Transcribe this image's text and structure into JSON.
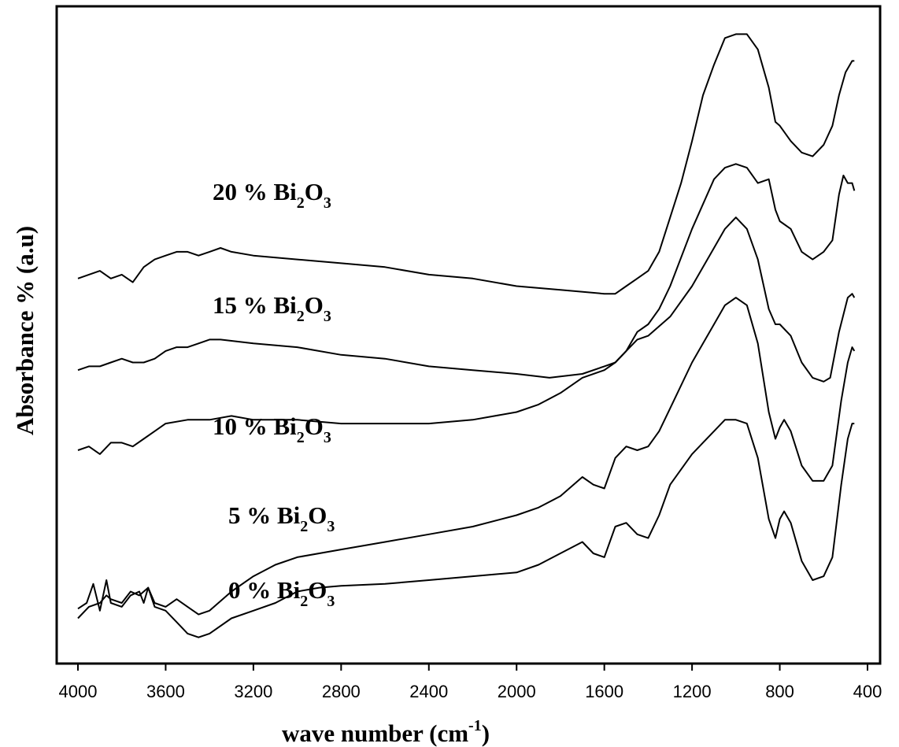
{
  "chart_data": {
    "type": "line",
    "xlabel": "wave number (cm",
    "xlabel_sup": "-1",
    "xlabel_close": ")",
    "ylabel": "Absorbance % (a.u)",
    "x_reversed": true,
    "xlim": [
      4000,
      400
    ],
    "xticks": [
      4000,
      3600,
      3200,
      2800,
      2400,
      2000,
      1600,
      1200,
      800,
      400
    ],
    "grid": false,
    "line_color": "#000000",
    "series": [
      {
        "name": "0 % Bi2O3",
        "label": {
          "prefix": "0 % Bi",
          "sub1": "2",
          "mid": "O",
          "sub2": "3"
        },
        "points": [
          [
            4000,
            0.055
          ],
          [
            3960,
            0.07
          ],
          [
            3930,
            0.12
          ],
          [
            3900,
            0.05
          ],
          [
            3870,
            0.13
          ],
          [
            3850,
            0.07
          ],
          [
            3800,
            0.06
          ],
          [
            3760,
            0.09
          ],
          [
            3720,
            0.1
          ],
          [
            3700,
            0.07
          ],
          [
            3680,
            0.11
          ],
          [
            3650,
            0.06
          ],
          [
            3600,
            0.05
          ],
          [
            3550,
            0.02
          ],
          [
            3500,
            -0.01
          ],
          [
            3450,
            -0.02
          ],
          [
            3400,
            -0.01
          ],
          [
            3300,
            0.03
          ],
          [
            3200,
            0.05
          ],
          [
            3100,
            0.07
          ],
          [
            3000,
            0.1
          ],
          [
            2900,
            0.11
          ],
          [
            2800,
            0.115
          ],
          [
            2600,
            0.12
          ],
          [
            2400,
            0.13
          ],
          [
            2200,
            0.14
          ],
          [
            2000,
            0.15
          ],
          [
            1900,
            0.17
          ],
          [
            1800,
            0.2
          ],
          [
            1700,
            0.23
          ],
          [
            1650,
            0.2
          ],
          [
            1600,
            0.19
          ],
          [
            1550,
            0.27
          ],
          [
            1500,
            0.28
          ],
          [
            1450,
            0.25
          ],
          [
            1400,
            0.24
          ],
          [
            1350,
            0.3
          ],
          [
            1300,
            0.38
          ],
          [
            1200,
            0.46
          ],
          [
            1100,
            0.52
          ],
          [
            1050,
            0.55
          ],
          [
            1000,
            0.55
          ],
          [
            950,
            0.54
          ],
          [
            900,
            0.45
          ],
          [
            850,
            0.29
          ],
          [
            820,
            0.24
          ],
          [
            800,
            0.29
          ],
          [
            780,
            0.31
          ],
          [
            750,
            0.28
          ],
          [
            700,
            0.18
          ],
          [
            650,
            0.13
          ],
          [
            600,
            0.14
          ],
          [
            560,
            0.19
          ],
          [
            520,
            0.38
          ],
          [
            490,
            0.5
          ],
          [
            470,
            0.54
          ],
          [
            460,
            0.54
          ]
        ]
      },
      {
        "name": "5 % Bi2O3",
        "label": {
          "prefix": "5 % Bi",
          "sub1": "2",
          "mid": "O",
          "sub2": "3"
        },
        "points": [
          [
            4000,
            0.03
          ],
          [
            3950,
            0.06
          ],
          [
            3900,
            0.07
          ],
          [
            3870,
            0.09
          ],
          [
            3850,
            0.08
          ],
          [
            3800,
            0.07
          ],
          [
            3760,
            0.1
          ],
          [
            3720,
            0.09
          ],
          [
            3680,
            0.11
          ],
          [
            3650,
            0.07
          ],
          [
            3600,
            0.06
          ],
          [
            3550,
            0.08
          ],
          [
            3500,
            0.06
          ],
          [
            3450,
            0.04
          ],
          [
            3400,
            0.05
          ],
          [
            3300,
            0.1
          ],
          [
            3200,
            0.14
          ],
          [
            3100,
            0.17
          ],
          [
            3000,
            0.19
          ],
          [
            2800,
            0.21
          ],
          [
            2600,
            0.23
          ],
          [
            2400,
            0.25
          ],
          [
            2200,
            0.27
          ],
          [
            2000,
            0.3
          ],
          [
            1900,
            0.32
          ],
          [
            1800,
            0.35
          ],
          [
            1700,
            0.4
          ],
          [
            1650,
            0.38
          ],
          [
            1600,
            0.37
          ],
          [
            1550,
            0.45
          ],
          [
            1500,
            0.48
          ],
          [
            1450,
            0.47
          ],
          [
            1400,
            0.48
          ],
          [
            1350,
            0.52
          ],
          [
            1300,
            0.58
          ],
          [
            1200,
            0.7
          ],
          [
            1100,
            0.8
          ],
          [
            1050,
            0.85
          ],
          [
            1000,
            0.87
          ],
          [
            950,
            0.85
          ],
          [
            900,
            0.75
          ],
          [
            850,
            0.57
          ],
          [
            820,
            0.5
          ],
          [
            800,
            0.53
          ],
          [
            780,
            0.55
          ],
          [
            750,
            0.52
          ],
          [
            700,
            0.43
          ],
          [
            650,
            0.39
          ],
          [
            600,
            0.39
          ],
          [
            560,
            0.43
          ],
          [
            520,
            0.6
          ],
          [
            490,
            0.7
          ],
          [
            470,
            0.74
          ],
          [
            460,
            0.73
          ]
        ]
      },
      {
        "name": "10 % Bi2O3",
        "label": {
          "prefix": "10 % Bi",
          "sub1": "2",
          "mid": "O",
          "sub2": "3"
        },
        "points": [
          [
            4000,
            0.47
          ],
          [
            3950,
            0.48
          ],
          [
            3900,
            0.46
          ],
          [
            3850,
            0.49
          ],
          [
            3800,
            0.49
          ],
          [
            3750,
            0.48
          ],
          [
            3700,
            0.5
          ],
          [
            3650,
            0.52
          ],
          [
            3600,
            0.54
          ],
          [
            3500,
            0.55
          ],
          [
            3400,
            0.55
          ],
          [
            3300,
            0.56
          ],
          [
            3200,
            0.55
          ],
          [
            3000,
            0.55
          ],
          [
            2800,
            0.54
          ],
          [
            2600,
            0.54
          ],
          [
            2400,
            0.54
          ],
          [
            2200,
            0.55
          ],
          [
            2000,
            0.57
          ],
          [
            1900,
            0.59
          ],
          [
            1800,
            0.62
          ],
          [
            1700,
            0.66
          ],
          [
            1600,
            0.68
          ],
          [
            1550,
            0.7
          ],
          [
            1500,
            0.73
          ],
          [
            1450,
            0.76
          ],
          [
            1400,
            0.77
          ],
          [
            1300,
            0.82
          ],
          [
            1200,
            0.9
          ],
          [
            1100,
            1.0
          ],
          [
            1050,
            1.05
          ],
          [
            1000,
            1.08
          ],
          [
            950,
            1.05
          ],
          [
            900,
            0.97
          ],
          [
            850,
            0.84
          ],
          [
            820,
            0.8
          ],
          [
            800,
            0.8
          ],
          [
            750,
            0.77
          ],
          [
            700,
            0.7
          ],
          [
            650,
            0.66
          ],
          [
            600,
            0.65
          ],
          [
            570,
            0.66
          ],
          [
            530,
            0.78
          ],
          [
            490,
            0.87
          ],
          [
            470,
            0.88
          ],
          [
            460,
            0.87
          ]
        ]
      },
      {
        "name": "15 % Bi2O3",
        "label": {
          "prefix": "15 % Bi",
          "sub1": "2",
          "mid": "O",
          "sub2": "3"
        },
        "points": [
          [
            4000,
            0.68
          ],
          [
            3950,
            0.69
          ],
          [
            3900,
            0.69
          ],
          [
            3850,
            0.7
          ],
          [
            3800,
            0.71
          ],
          [
            3750,
            0.7
          ],
          [
            3700,
            0.7
          ],
          [
            3650,
            0.71
          ],
          [
            3600,
            0.73
          ],
          [
            3550,
            0.74
          ],
          [
            3500,
            0.74
          ],
          [
            3450,
            0.75
          ],
          [
            3400,
            0.76
          ],
          [
            3350,
            0.76
          ],
          [
            3200,
            0.75
          ],
          [
            3000,
            0.74
          ],
          [
            2800,
            0.72
          ],
          [
            2600,
            0.71
          ],
          [
            2400,
            0.69
          ],
          [
            2200,
            0.68
          ],
          [
            2000,
            0.67
          ],
          [
            1850,
            0.66
          ],
          [
            1700,
            0.67
          ],
          [
            1600,
            0.69
          ],
          [
            1550,
            0.7
          ],
          [
            1500,
            0.73
          ],
          [
            1450,
            0.78
          ],
          [
            1400,
            0.8
          ],
          [
            1350,
            0.84
          ],
          [
            1300,
            0.9
          ],
          [
            1200,
            1.05
          ],
          [
            1100,
            1.18
          ],
          [
            1050,
            1.21
          ],
          [
            1000,
            1.22
          ],
          [
            950,
            1.21
          ],
          [
            900,
            1.17
          ],
          [
            850,
            1.18
          ],
          [
            820,
            1.1
          ],
          [
            800,
            1.07
          ],
          [
            750,
            1.05
          ],
          [
            700,
            0.99
          ],
          [
            650,
            0.97
          ],
          [
            600,
            0.99
          ],
          [
            560,
            1.02
          ],
          [
            530,
            1.14
          ],
          [
            510,
            1.19
          ],
          [
            490,
            1.17
          ],
          [
            470,
            1.17
          ],
          [
            460,
            1.15
          ]
        ]
      },
      {
        "name": "20 % Bi2O3",
        "label": {
          "prefix": "20 % Bi",
          "sub1": "2",
          "mid": "O",
          "sub2": "3"
        },
        "points": [
          [
            4000,
            0.92
          ],
          [
            3950,
            0.93
          ],
          [
            3900,
            0.94
          ],
          [
            3850,
            0.92
          ],
          [
            3800,
            0.93
          ],
          [
            3750,
            0.91
          ],
          [
            3700,
            0.95
          ],
          [
            3650,
            0.97
          ],
          [
            3600,
            0.98
          ],
          [
            3550,
            0.99
          ],
          [
            3500,
            0.99
          ],
          [
            3450,
            0.98
          ],
          [
            3400,
            0.99
          ],
          [
            3350,
            1.0
          ],
          [
            3300,
            0.99
          ],
          [
            3200,
            0.98
          ],
          [
            3000,
            0.97
          ],
          [
            2800,
            0.96
          ],
          [
            2600,
            0.95
          ],
          [
            2400,
            0.93
          ],
          [
            2200,
            0.92
          ],
          [
            2000,
            0.9
          ],
          [
            1800,
            0.89
          ],
          [
            1600,
            0.88
          ],
          [
            1550,
            0.88
          ],
          [
            1500,
            0.9
          ],
          [
            1450,
            0.92
          ],
          [
            1400,
            0.94
          ],
          [
            1350,
            0.99
          ],
          [
            1300,
            1.08
          ],
          [
            1250,
            1.17
          ],
          [
            1200,
            1.28
          ],
          [
            1150,
            1.4
          ],
          [
            1100,
            1.48
          ],
          [
            1050,
            1.55
          ],
          [
            1000,
            1.56
          ],
          [
            950,
            1.56
          ],
          [
            900,
            1.52
          ],
          [
            850,
            1.42
          ],
          [
            820,
            1.33
          ],
          [
            800,
            1.32
          ],
          [
            750,
            1.28
          ],
          [
            700,
            1.25
          ],
          [
            650,
            1.24
          ],
          [
            600,
            1.27
          ],
          [
            560,
            1.32
          ],
          [
            530,
            1.4
          ],
          [
            500,
            1.46
          ],
          [
            470,
            1.49
          ],
          [
            460,
            1.49
          ]
        ]
      }
    ]
  }
}
